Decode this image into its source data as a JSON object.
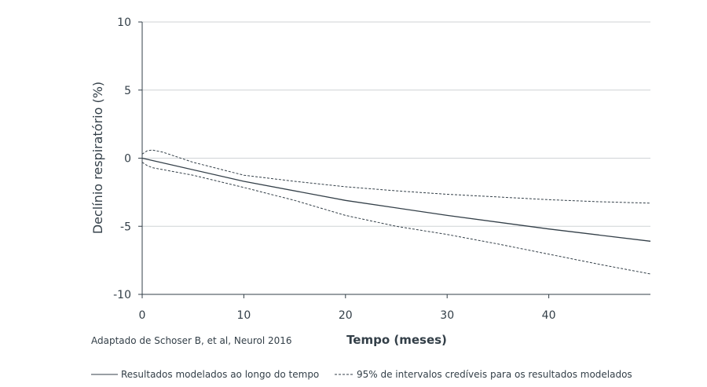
{
  "chart_data": {
    "type": "line",
    "xlabel": "Tempo (meses)",
    "ylabel": "Declínio respiratório (%)",
    "xlim": [
      0,
      50
    ],
    "ylim": [
      -10,
      10
    ],
    "x_ticks": [
      0,
      10,
      20,
      30,
      40
    ],
    "y_ticks": [
      10,
      5,
      0,
      -5,
      -10
    ],
    "y_tick_labels": [
      "10",
      "5",
      "0",
      "-5",
      "-10"
    ],
    "grid": "horizontal",
    "source_note": "Adaptado de Schoser B, et al, Neurol 2016",
    "series": [
      {
        "style": "solid",
        "x": [
          0,
          10,
          20,
          30,
          40,
          50
        ],
        "y": [
          0,
          -1.7,
          -3.1,
          -4.2,
          -5.2,
          -6.1
        ]
      },
      {
        "style": "dashed",
        "x": [
          0,
          0.5,
          1,
          2,
          5,
          10,
          15,
          20,
          25,
          30,
          35,
          40,
          45,
          50
        ],
        "y": [
          0.3,
          0.55,
          0.6,
          0.45,
          -0.3,
          -1.25,
          -1.7,
          -2.1,
          -2.4,
          -2.65,
          -2.85,
          -3.05,
          -3.2,
          -3.3
        ]
      },
      {
        "style": "dashed",
        "x": [
          0,
          0.5,
          1,
          5,
          10,
          15,
          20,
          25,
          30,
          35,
          40,
          45,
          50
        ],
        "y": [
          -0.3,
          -0.55,
          -0.7,
          -1.25,
          -2.15,
          -3.1,
          -4.2,
          -5.0,
          -5.6,
          -6.3,
          -7.05,
          -7.8,
          -8.5
        ]
      }
    ],
    "legend": {
      "placement": "bottom",
      "items": [
        {
          "style": "solid",
          "label": "Resultados modelados ao longo do tempo"
        },
        {
          "style": "dashed",
          "label": "95% de intervalos credíveis para os resultados modelados"
        }
      ]
    }
  }
}
